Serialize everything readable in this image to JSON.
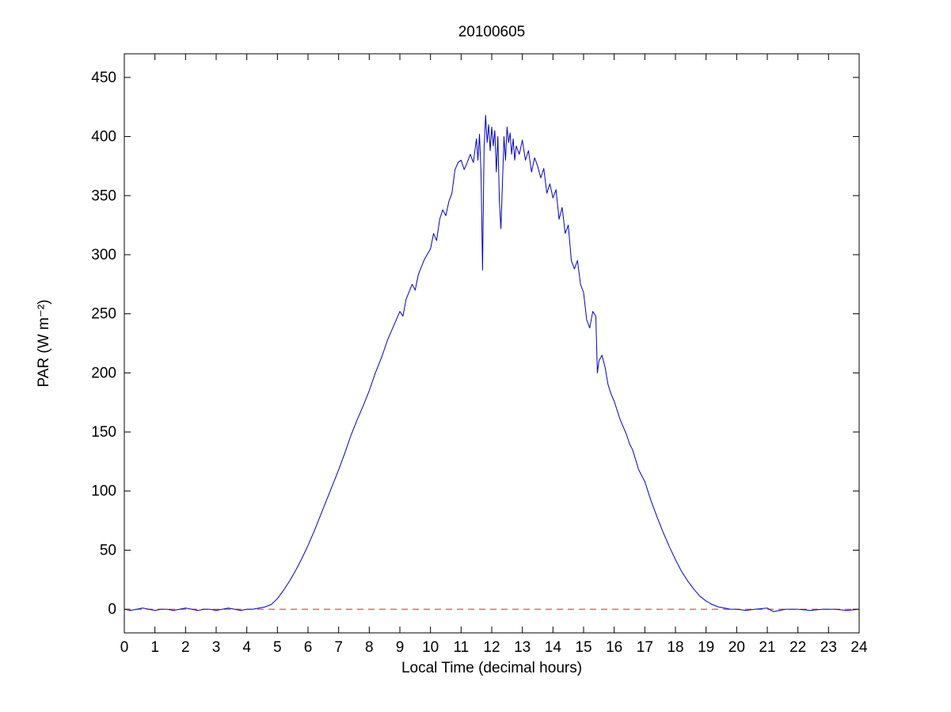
{
  "chart_data": {
    "type": "line",
    "title": "20100605",
    "xlabel": "Local Time (decimal hours)",
    "ylabel": "PAR (W m⁻²)",
    "xlim": [
      0,
      24
    ],
    "ylim": [
      -20,
      470
    ],
    "x_ticks": [
      0,
      1,
      2,
      3,
      4,
      5,
      6,
      7,
      8,
      9,
      10,
      11,
      12,
      13,
      14,
      15,
      16,
      17,
      18,
      19,
      20,
      21,
      22,
      23,
      24
    ],
    "y_ticks": [
      0,
      50,
      100,
      150,
      200,
      250,
      300,
      350,
      400,
      450
    ],
    "grid": false,
    "legend": "none",
    "line_color": "#0000cc",
    "zero_line": {
      "y": 0,
      "color": "#dd2222",
      "style": "dashed"
    },
    "series": [
      {
        "name": "PAR",
        "points": [
          [
            0,
            0
          ],
          [
            0.2,
            -1
          ],
          [
            0.4,
            0
          ],
          [
            0.6,
            1
          ],
          [
            0.8,
            0
          ],
          [
            1.0,
            -1
          ],
          [
            1.2,
            0
          ],
          [
            1.4,
            0
          ],
          [
            1.6,
            -1
          ],
          [
            1.8,
            0
          ],
          [
            2.0,
            1
          ],
          [
            2.2,
            0
          ],
          [
            2.4,
            -1
          ],
          [
            2.6,
            0
          ],
          [
            2.8,
            0
          ],
          [
            3.0,
            -1
          ],
          [
            3.2,
            0
          ],
          [
            3.4,
            1
          ],
          [
            3.6,
            0
          ],
          [
            3.8,
            -1
          ],
          [
            4.0,
            0
          ],
          [
            4.2,
            0
          ],
          [
            4.4,
            1
          ],
          [
            4.6,
            2
          ],
          [
            4.8,
            4
          ],
          [
            5.0,
            9
          ],
          [
            5.2,
            16
          ],
          [
            5.4,
            24
          ],
          [
            5.6,
            33
          ],
          [
            5.8,
            43
          ],
          [
            6.0,
            54
          ],
          [
            6.2,
            66
          ],
          [
            6.4,
            79
          ],
          [
            6.6,
            92
          ],
          [
            6.8,
            105
          ],
          [
            7.0,
            118
          ],
          [
            7.2,
            132
          ],
          [
            7.4,
            147
          ],
          [
            7.6,
            160
          ],
          [
            7.8,
            172
          ],
          [
            8.0,
            185
          ],
          [
            8.2,
            200
          ],
          [
            8.4,
            213
          ],
          [
            8.6,
            228
          ],
          [
            8.8,
            240
          ],
          [
            9.0,
            252
          ],
          [
            9.1,
            248
          ],
          [
            9.2,
            262
          ],
          [
            9.4,
            275
          ],
          [
            9.5,
            270
          ],
          [
            9.6,
            283
          ],
          [
            9.8,
            296
          ],
          [
            10.0,
            305
          ],
          [
            10.1,
            318
          ],
          [
            10.2,
            312
          ],
          [
            10.3,
            330
          ],
          [
            10.4,
            338
          ],
          [
            10.5,
            333
          ],
          [
            10.6,
            345
          ],
          [
            10.7,
            352
          ],
          [
            10.8,
            372
          ],
          [
            10.9,
            378
          ],
          [
            11.0,
            380
          ],
          [
            11.1,
            372
          ],
          [
            11.2,
            378
          ],
          [
            11.3,
            385
          ],
          [
            11.4,
            378
          ],
          [
            11.5,
            398
          ],
          [
            11.55,
            380
          ],
          [
            11.6,
            402
          ],
          [
            11.65,
            370
          ],
          [
            11.7,
            287
          ],
          [
            11.75,
            390
          ],
          [
            11.8,
            418
          ],
          [
            11.85,
            395
          ],
          [
            11.9,
            410
          ],
          [
            11.95,
            388
          ],
          [
            12.0,
            408
          ],
          [
            12.05,
            392
          ],
          [
            12.1,
            405
          ],
          [
            12.15,
            370
          ],
          [
            12.2,
            400
          ],
          [
            12.25,
            345
          ],
          [
            12.3,
            322
          ],
          [
            12.35,
            360
          ],
          [
            12.4,
            400
          ],
          [
            12.45,
            380
          ],
          [
            12.5,
            408
          ],
          [
            12.55,
            395
          ],
          [
            12.6,
            403
          ],
          [
            12.65,
            385
          ],
          [
            12.7,
            398
          ],
          [
            12.75,
            380
          ],
          [
            12.8,
            392
          ],
          [
            12.9,
            385
          ],
          [
            13.0,
            397
          ],
          [
            13.1,
            380
          ],
          [
            13.2,
            388
          ],
          [
            13.3,
            370
          ],
          [
            13.4,
            382
          ],
          [
            13.5,
            375
          ],
          [
            13.6,
            365
          ],
          [
            13.7,
            373
          ],
          [
            13.8,
            352
          ],
          [
            13.9,
            360
          ],
          [
            14.0,
            348
          ],
          [
            14.1,
            355
          ],
          [
            14.2,
            330
          ],
          [
            14.3,
            340
          ],
          [
            14.4,
            318
          ],
          [
            14.5,
            325
          ],
          [
            14.6,
            295
          ],
          [
            14.7,
            288
          ],
          [
            14.8,
            295
          ],
          [
            14.9,
            275
          ],
          [
            15.0,
            268
          ],
          [
            15.1,
            245
          ],
          [
            15.2,
            238
          ],
          [
            15.3,
            252
          ],
          [
            15.4,
            248
          ],
          [
            15.45,
            200
          ],
          [
            15.5,
            210
          ],
          [
            15.6,
            215
          ],
          [
            15.7,
            205
          ],
          [
            15.8,
            190
          ],
          [
            15.9,
            182
          ],
          [
            16.0,
            176
          ],
          [
            16.2,
            160
          ],
          [
            16.4,
            148
          ],
          [
            16.5,
            140
          ],
          [
            16.6,
            135
          ],
          [
            16.8,
            118
          ],
          [
            17.0,
            108
          ],
          [
            17.2,
            92
          ],
          [
            17.4,
            78
          ],
          [
            17.6,
            65
          ],
          [
            17.8,
            53
          ],
          [
            18.0,
            42
          ],
          [
            18.2,
            32
          ],
          [
            18.4,
            24
          ],
          [
            18.6,
            17
          ],
          [
            18.8,
            11
          ],
          [
            19.0,
            7
          ],
          [
            19.2,
            4
          ],
          [
            19.4,
            2
          ],
          [
            19.6,
            1
          ],
          [
            19.8,
            0
          ],
          [
            20.0,
            0
          ],
          [
            20.3,
            -1
          ],
          [
            20.6,
            0
          ],
          [
            21.0,
            1
          ],
          [
            21.2,
            -2
          ],
          [
            21.4,
            -1
          ],
          [
            21.6,
            0
          ],
          [
            22.0,
            0
          ],
          [
            22.4,
            -1
          ],
          [
            22.8,
            0
          ],
          [
            23.2,
            0
          ],
          [
            23.6,
            -1
          ],
          [
            24.0,
            0
          ]
        ]
      }
    ]
  }
}
